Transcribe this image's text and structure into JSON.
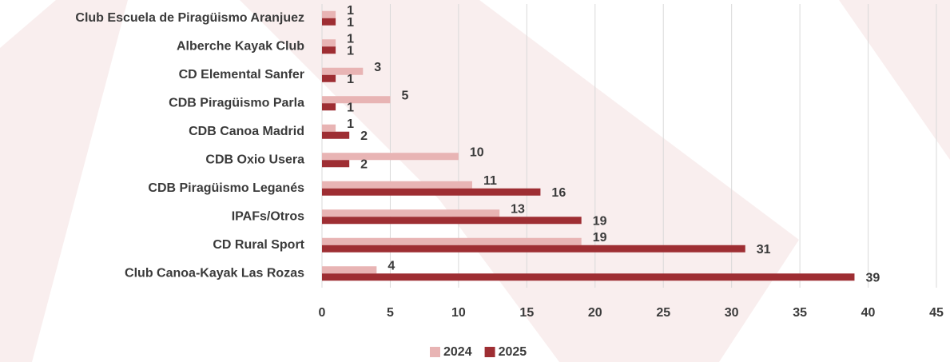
{
  "chart_data": {
    "type": "hbar",
    "categories": [
      "Club Escuela de Piragüismo Aranjuez",
      "Alberche Kayak Club",
      "CD Elemental Sanfer",
      "CDB Piragüismo Parla",
      "CDB Canoa Madrid",
      "CDB Oxio Usera",
      "CDB Piragüismo Leganés",
      "IPAFs/Otros",
      "CD Rural Sport",
      "Club Canoa-Kayak Las Rozas"
    ],
    "series": [
      {
        "name": "2024",
        "color": "#e8b4b4",
        "values": [
          1,
          1,
          3,
          5,
          1,
          10,
          11,
          13,
          19,
          4
        ]
      },
      {
        "name": "2025",
        "color": "#9e2e33",
        "values": [
          1,
          1,
          1,
          1,
          2,
          2,
          16,
          19,
          31,
          39
        ]
      }
    ],
    "xlim": [
      0,
      45
    ],
    "xticks": [
      0,
      5,
      10,
      15,
      20,
      25,
      30,
      35,
      40,
      45
    ],
    "grid": true,
    "legend": "bottom"
  }
}
